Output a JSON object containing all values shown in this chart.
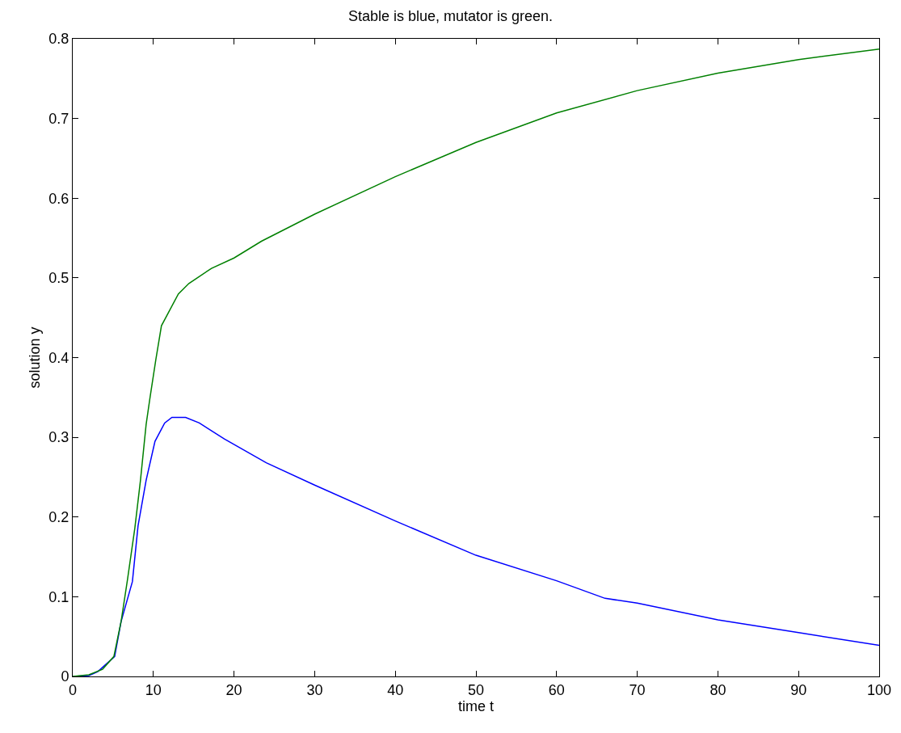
{
  "chart_data": {
    "type": "line",
    "title": "Stable is blue, mutator is green.",
    "xlabel": "time t",
    "ylabel": "solution y",
    "xlim": [
      0,
      100
    ],
    "xticks": [
      0,
      10,
      20,
      30,
      40,
      50,
      60,
      70,
      80,
      90,
      100
    ],
    "ylim": [
      0,
      0.8
    ],
    "yticks": [
      0,
      0.1,
      0.2,
      0.3,
      0.4,
      0.5,
      0.6,
      0.7,
      0.8
    ],
    "marker": "none",
    "line_style": "solid",
    "series": [
      {
        "color": "#0000ff",
        "x": [
          0,
          2,
          3.1,
          5.2,
          6.0,
          7.4,
          8.1,
          9.1,
          10.2,
          11.4,
          12.3,
          14.0,
          15.7,
          18.8,
          24,
          30,
          40,
          50,
          60,
          66,
          70,
          80,
          90,
          100
        ],
        "values": [
          0,
          0.001,
          0.006,
          0.025,
          0.069,
          0.119,
          0.189,
          0.246,
          0.295,
          0.318,
          0.325,
          0.325,
          0.318,
          0.298,
          0.268,
          0.24,
          0.195,
          0.152,
          0.12,
          0.098,
          0.092,
          0.071,
          0.055,
          0.039
        ]
      },
      {
        "color": "#008000",
        "x": [
          0,
          2.0,
          3.7,
          5.1,
          6.0,
          6.8,
          7.7,
          8.4,
          9.1,
          9.6,
          10.3,
          11.0,
          13.1,
          14.4,
          17.2,
          20,
          23.4,
          30,
          40,
          50,
          60,
          70,
          80,
          90,
          100
        ],
        "values": [
          0,
          0.002,
          0.009,
          0.025,
          0.069,
          0.122,
          0.186,
          0.246,
          0.316,
          0.351,
          0.397,
          0.44,
          0.48,
          0.493,
          0.512,
          0.525,
          0.546,
          0.58,
          0.627,
          0.67,
          0.707,
          0.735,
          0.757,
          0.774,
          0.787
        ]
      }
    ]
  }
}
